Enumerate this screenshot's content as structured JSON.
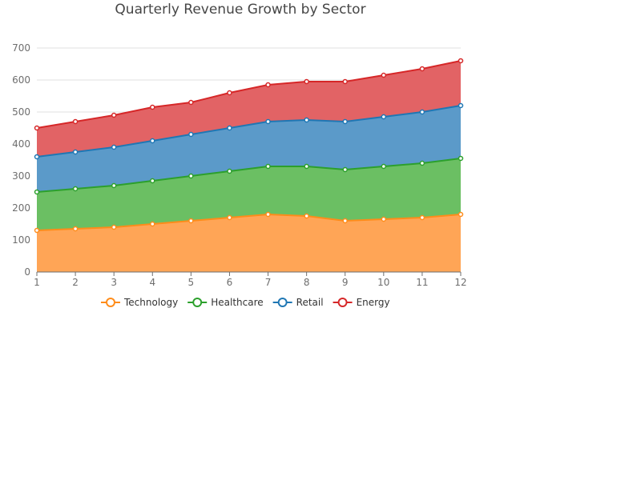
{
  "chart_data": {
    "type": "area",
    "stacked": true,
    "title": "Quarterly Revenue Growth by Sector",
    "xlabel": "",
    "ylabel": "",
    "x": [
      1,
      2,
      3,
      4,
      5,
      6,
      7,
      8,
      9,
      10,
      11,
      12
    ],
    "ylim": [
      0,
      700
    ],
    "yticks": [
      0,
      100,
      200,
      300,
      400,
      500,
      600,
      700
    ],
    "grid": true,
    "legend_position": "bottom-left",
    "series": [
      {
        "name": "Technology",
        "color": "#ff8c1a",
        "fill": "#ffa556",
        "values": [
          130,
          135,
          140,
          150,
          160,
          170,
          180,
          175,
          160,
          165,
          170,
          180
        ]
      },
      {
        "name": "Healthcare",
        "color": "#2ca02c",
        "fill": "#6bbf63",
        "values": [
          120,
          125,
          130,
          135,
          140,
          145,
          150,
          155,
          160,
          165,
          170,
          175
        ]
      },
      {
        "name": "Retail",
        "color": "#1f77b4",
        "fill": "#5b9ac9",
        "values": [
          110,
          115,
          120,
          125,
          130,
          135,
          140,
          145,
          150,
          155,
          160,
          165
        ]
      },
      {
        "name": "Energy",
        "color": "#d62728",
        "fill": "#e26365",
        "values": [
          90,
          95,
          100,
          105,
          100,
          110,
          115,
          120,
          125,
          130,
          135,
          140
        ]
      }
    ]
  }
}
